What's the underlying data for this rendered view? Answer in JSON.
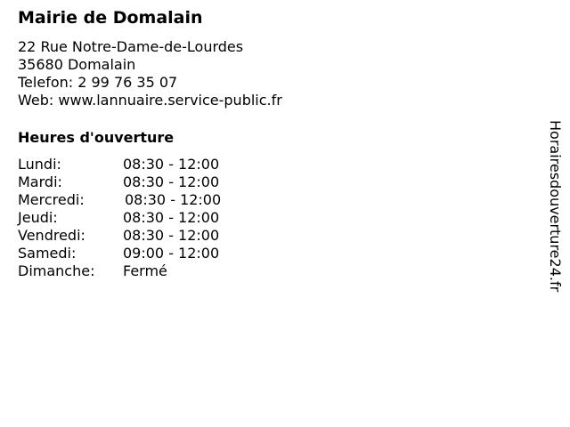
{
  "title": "Mairie de Domalain",
  "address": {
    "street": "22 Rue Notre-Dame-de-Lourdes",
    "city": "35680 Domalain",
    "phone": "Telefon: 2 99 76 35 07",
    "web": "Web: www.lannuaire.service-public.fr"
  },
  "hours_heading": "Heures d'ouverture",
  "hours": [
    {
      "day": "Lundi:",
      "time": "08:30 - 12:00"
    },
    {
      "day": "Mardi:",
      "time": "08:30 - 12:00"
    },
    {
      "day": "Mercredi:",
      "time": "08:30 - 12:00"
    },
    {
      "day": "Jeudi:",
      "time": "08:30 - 12:00"
    },
    {
      "day": "Vendredi:",
      "time": "08:30 - 12:00"
    },
    {
      "day": "Samedi:",
      "time": "09:00 - 12:00"
    },
    {
      "day": "Dimanche:",
      "time": "Fermé"
    }
  ],
  "watermark": "Horairesdouverture24.fr"
}
